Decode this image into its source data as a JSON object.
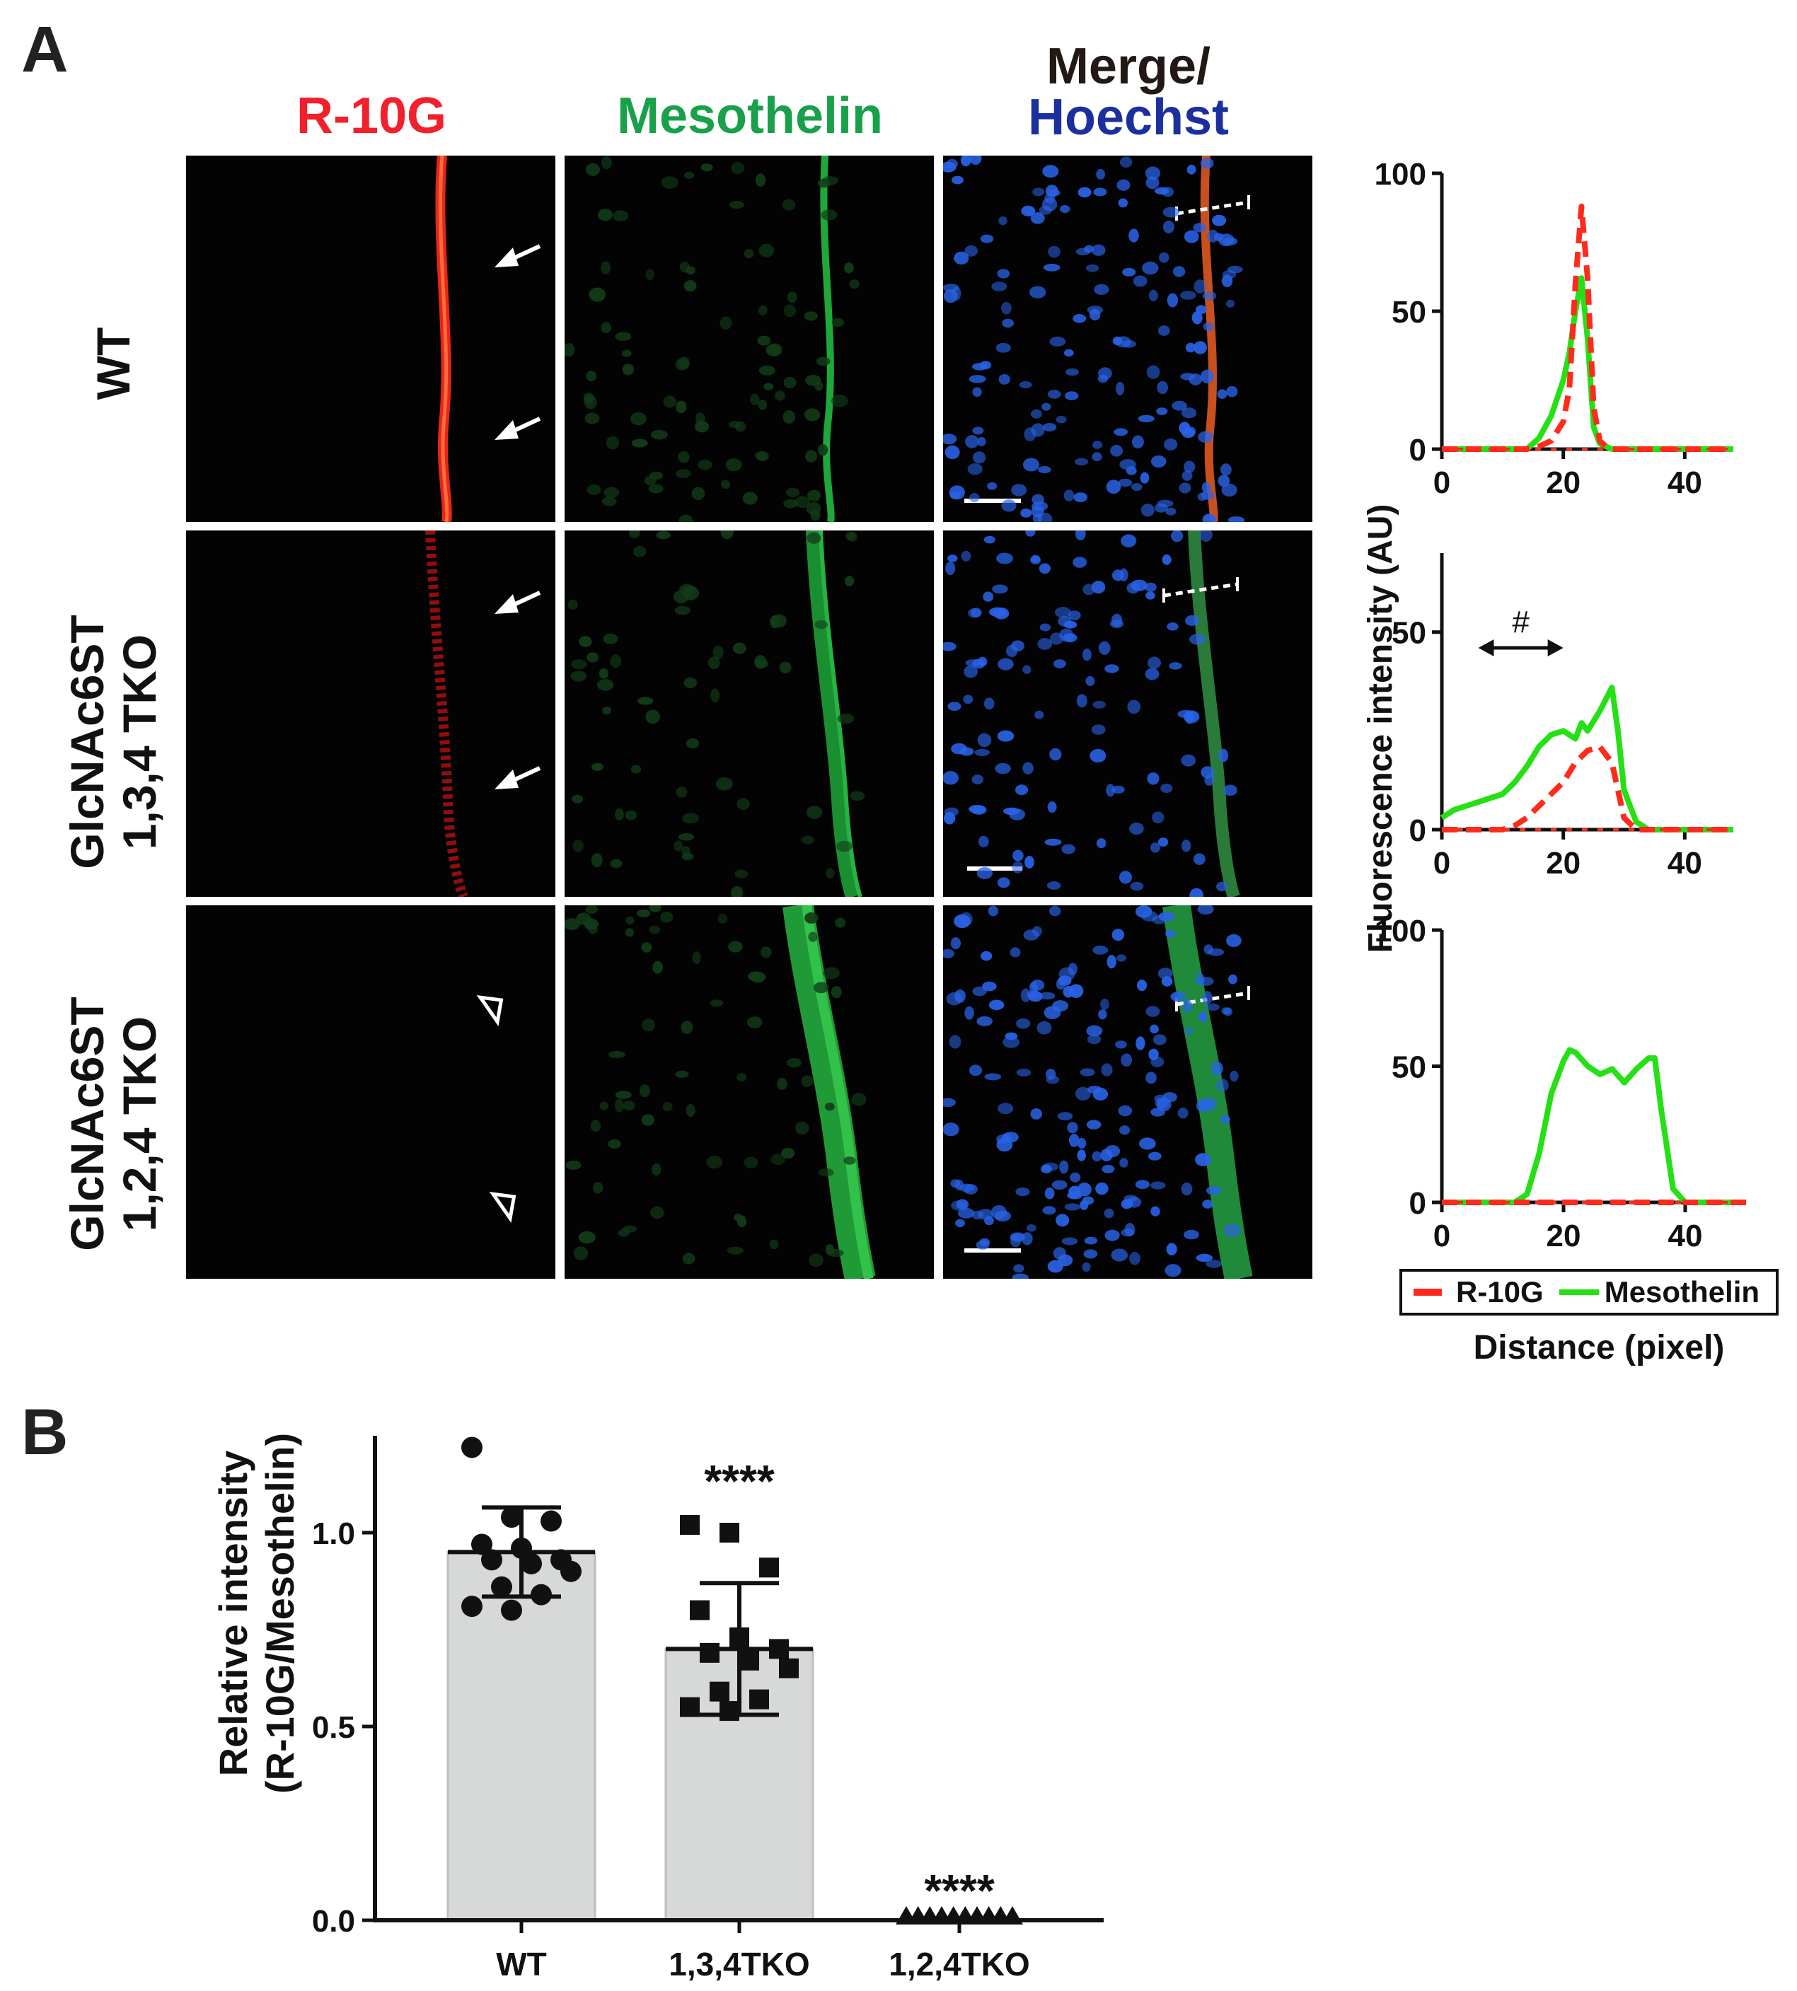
{
  "panel_a": {
    "letter": "A",
    "columns": {
      "r10g": "R-10G",
      "mesothelin": "Mesothelin",
      "merge_line1": "Merge/",
      "merge_line2": "Hoechst"
    },
    "rows": [
      {
        "line1": "WT",
        "line2": ""
      },
      {
        "line1": "GlcNAc6ST",
        "line2": "1,3,4 TKO"
      },
      {
        "line1": "GlcNAc6ST",
        "line2": "1,2,4 TKO"
      }
    ],
    "colors": {
      "r10g": "#f2202a",
      "mesothelin": "#18a14a",
      "hoechst": "#1b2f9e",
      "merge": "#231815"
    },
    "markers": [
      "arrow",
      "arrow",
      "arrowhead-open"
    ],
    "hash_label": "#",
    "y_axis_label": "Fluorescence intensity (AU)",
    "x_axis_label": "Distance (pixel)",
    "legend": {
      "r10g": "R-10G",
      "mesothelin": "Mesothelin"
    }
  },
  "panel_b": {
    "letter": "B",
    "y_axis_label_line1": "Relative intensity",
    "y_axis_label_line2": "(R-10G/Mesothelin)",
    "significance": [
      "",
      "****",
      "****"
    ]
  },
  "chart_data": [
    {
      "type": "line",
      "panel": "A-WT",
      "xlim": [
        0,
        48
      ],
      "ylim": [
        0,
        100
      ],
      "xticks": [
        0,
        20,
        40
      ],
      "yticks": [
        0,
        50,
        100
      ],
      "series": [
        {
          "name": "R-10G",
          "style": "dashed",
          "color": "#ff2a1a",
          "x": [
            0,
            14,
            16,
            18,
            20,
            21,
            22,
            23,
            24,
            25,
            26,
            27,
            28,
            48
          ],
          "y": [
            0,
            0,
            1,
            3,
            10,
            22,
            60,
            88,
            62,
            15,
            3,
            1,
            0,
            0
          ]
        },
        {
          "name": "Mesothelin",
          "style": "solid",
          "color": "#25e014",
          "x": [
            0,
            14,
            16,
            18,
            20,
            21,
            22,
            23,
            24,
            25,
            26,
            28,
            48
          ],
          "y": [
            0,
            0,
            4,
            12,
            25,
            35,
            50,
            62,
            40,
            8,
            2,
            0,
            0
          ]
        }
      ]
    },
    {
      "type": "line",
      "panel": "A-1,3,4TKO",
      "xlim": [
        0,
        48
      ],
      "ylim": [
        0,
        70
      ],
      "xticks": [
        0,
        20,
        40
      ],
      "yticks": [
        0,
        50
      ],
      "series": [
        {
          "name": "R-10G",
          "style": "dashed",
          "color": "#ff2a1a",
          "x": [
            0,
            10,
            12,
            14,
            16,
            18,
            20,
            22,
            24,
            26,
            28,
            29,
            30,
            32,
            34,
            48
          ],
          "y": [
            0,
            0,
            1,
            3,
            6,
            9,
            12,
            17,
            20,
            21,
            17,
            10,
            3,
            0,
            0,
            0
          ]
        },
        {
          "name": "Mesothelin",
          "style": "solid",
          "color": "#25e014",
          "x": [
            0,
            2,
            4,
            6,
            8,
            10,
            12,
            14,
            16,
            18,
            20,
            22,
            23,
            24,
            26,
            27,
            28,
            29,
            30,
            32,
            34,
            48
          ],
          "y": [
            3,
            5,
            6,
            7,
            8,
            9,
            12,
            16,
            21,
            24,
            25,
            23,
            27,
            25,
            30,
            33,
            36,
            25,
            10,
            2,
            0,
            0
          ]
        }
      ]
    },
    {
      "type": "line",
      "panel": "A-1,2,4TKO",
      "xlim": [
        0,
        50
      ],
      "ylim": [
        0,
        100
      ],
      "xticks": [
        0,
        20,
        40
      ],
      "yticks": [
        0,
        50,
        100
      ],
      "series": [
        {
          "name": "R-10G",
          "style": "dashed",
          "color": "#ff2a1a",
          "x": [
            0,
            50
          ],
          "y": [
            0,
            0
          ]
        },
        {
          "name": "Mesothelin",
          "style": "solid",
          "color": "#25e014",
          "x": [
            0,
            12,
            14,
            16,
            18,
            20,
            21,
            22,
            24,
            26,
            28,
            30,
            32,
            34,
            35,
            36,
            38,
            40,
            50
          ],
          "y": [
            0,
            0,
            3,
            18,
            40,
            52,
            56,
            55,
            50,
            47,
            49,
            44,
            49,
            53,
            53,
            35,
            5,
            0,
            0
          ]
        }
      ]
    },
    {
      "type": "bar",
      "panel": "B",
      "categories": [
        "WT",
        "1,3,4TKO",
        "1,2,4TKO"
      ],
      "values": [
        0.95,
        0.7,
        0.0
      ],
      "error": [
        0.115,
        0.17,
        0.0
      ],
      "ylim": [
        0,
        1.25
      ],
      "yticks": [
        0.0,
        0.5,
        1.0
      ],
      "points": [
        {
          "marker": "circle",
          "values": [
            1.22,
            1.04,
            1.03,
            0.97,
            0.96,
            0.93,
            0.93,
            0.92,
            0.9,
            0.86,
            0.84,
            0.81,
            0.8
          ]
        },
        {
          "marker": "square",
          "values": [
            1.02,
            1.0,
            0.91,
            0.8,
            0.73,
            0.7,
            0.69,
            0.67,
            0.65,
            0.59,
            0.57,
            0.55,
            0.54
          ]
        },
        {
          "marker": "triangle",
          "values": [
            0,
            0,
            0,
            0,
            0,
            0,
            0,
            0,
            0,
            0
          ]
        }
      ]
    }
  ]
}
